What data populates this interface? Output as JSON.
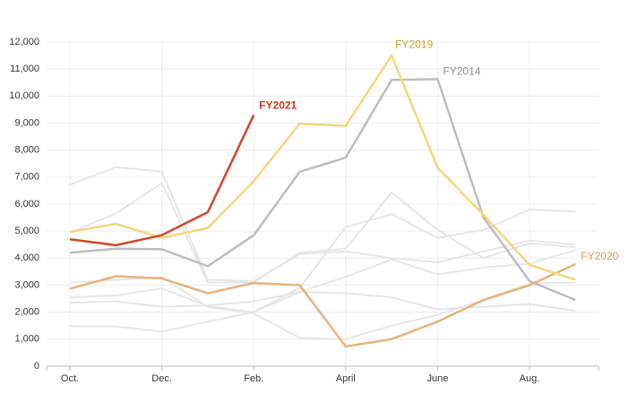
{
  "chart_data": {
    "type": "line",
    "categories": [
      "Oct.",
      null,
      "Dec.",
      null,
      "Feb.",
      null,
      "April",
      null,
      "June",
      null,
      "Aug.",
      null
    ],
    "ylim": [
      0,
      12000
    ],
    "yticks": [
      0,
      {
        "value": 1000,
        "label": "1,000"
      },
      {
        "value": 2000,
        "label": "2,000"
      },
      {
        "value": 3000,
        "label": "3,000"
      },
      {
        "value": 4000,
        "label": "4,000"
      },
      {
        "value": 5000,
        "label": "5,000"
      },
      {
        "value": 6000,
        "label": "6,000"
      },
      {
        "value": 7000,
        "label": "7,000"
      },
      {
        "value": 8000,
        "label": "8,000"
      },
      {
        "value": 9000,
        "label": "9,000"
      },
      {
        "value": 10000,
        "label": "10,000"
      },
      {
        "value": 11000,
        "label": "11,000"
      },
      {
        "value": 12000,
        "label": "12,000"
      }
    ],
    "grid": true,
    "series": [
      {
        "color": "#e6e6e6",
        "values": [
          6720,
          7370,
          7200,
          3200,
          3150,
          4150,
          4250,
          4000,
          3850,
          4250,
          4650,
          4500
        ]
      },
      {
        "color": "#e6e6e6",
        "values": [
          4950,
          5650,
          6780,
          3100,
          3100,
          4200,
          4350,
          6430,
          5050,
          4000,
          4550,
          4400
        ]
      },
      {
        "color": "#e6e6e6",
        "values": [
          2350,
          2400,
          2200,
          2250,
          2400,
          2750,
          2700,
          2550,
          2100,
          2200,
          2300,
          2050
        ]
      },
      {
        "color": "#e6e6e6",
        "values": [
          2550,
          2620,
          2880,
          2220,
          2000,
          2750,
          3300,
          3950,
          3400,
          3650,
          3800,
          4300
        ]
      },
      {
        "color": "#e6e6e6",
        "values": [
          1480,
          1470,
          1280,
          1650,
          2000,
          2900,
          5150,
          5630,
          4750,
          5050,
          5800,
          5720
        ]
      },
      {
        "color": "#e6e6e6",
        "values": [
          3100,
          3200,
          3300,
          2200,
          1950,
          1050,
          1000,
          1500,
          1900,
          2450,
          3050,
          3100
        ]
      },
      {
        "name": "FY2014",
        "color": "#bdbdbd",
        "values": [
          4200,
          4350,
          4330,
          3700,
          4850,
          7200,
          7720,
          10600,
          10630,
          5500,
          3150,
          2450
        ]
      },
      {
        "name": "FY2020",
        "color": "#e9b27a",
        "values": [
          2870,
          3330,
          3250,
          2700,
          3080,
          3000,
          730,
          1000,
          1650,
          2450,
          3000,
          3780
        ]
      },
      {
        "name": "FY2019",
        "color": "#f2d77c",
        "values": [
          4970,
          5270,
          4750,
          5120,
          6850,
          8980,
          8900,
          11500,
          7350,
          5600,
          3750,
          3200
        ]
      },
      {
        "name": "FY2021",
        "color": "#d2472a",
        "values": [
          4700,
          4480,
          4850,
          5700,
          9300,
          null,
          null,
          null,
          null,
          null,
          null,
          null
        ]
      }
    ]
  }
}
